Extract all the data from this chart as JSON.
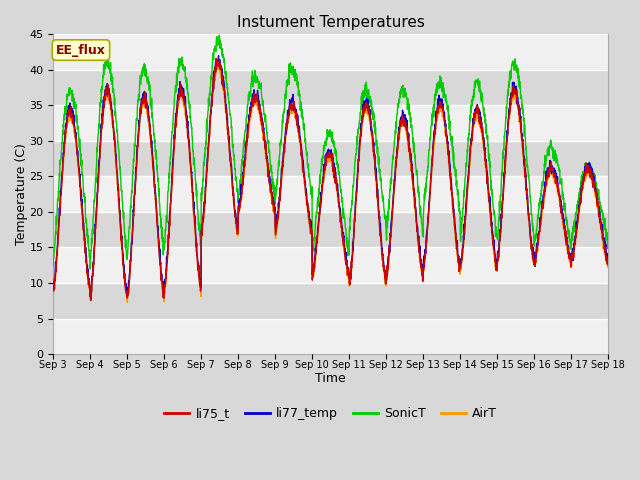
{
  "title": "Instument Temperatures",
  "xlabel": "Time",
  "ylabel": "Temperature (C)",
  "ylim": [
    0,
    45
  ],
  "yticks": [
    0,
    5,
    10,
    15,
    20,
    25,
    30,
    35,
    40,
    45
  ],
  "annotation_text": "EE_flux",
  "series_labels": [
    "li75_t",
    "li77_temp",
    "SonicT",
    "AirT"
  ],
  "series_colors": [
    "#cc0000",
    "#0000cc",
    "#00cc00",
    "#ff9900"
  ],
  "x_tick_labels": [
    "Sep 3",
    "Sep 4",
    "Sep 5",
    "Sep 6",
    "Sep 7",
    "Sep 8",
    "Sep 9",
    "Sep 10",
    "Sep 11",
    "Sep 12",
    "Sep 13",
    "Sep 14",
    "Sep 15",
    "Sep 16",
    "Sep 17",
    "Sep 18"
  ],
  "bg_color": "#d8d8d8",
  "plot_bg_color": "#f0f0f0",
  "grid_color": "#e0e0e0",
  "band_color": "#e8e8e8",
  "fig_width": 6.4,
  "fig_height": 4.8,
  "dpi": 100,
  "day_maxes_li75": [
    34,
    37,
    36,
    37,
    41,
    36,
    35,
    28,
    35,
    33,
    35,
    34,
    37,
    26,
    26
  ],
  "day_mins_li75": [
    9,
    8,
    8,
    9,
    17,
    20,
    17,
    11,
    10,
    11,
    12,
    12,
    13,
    13,
    13
  ],
  "sonic_offset": [
    3,
    4,
    4,
    4,
    3,
    3,
    5,
    3,
    2,
    4,
    3,
    4,
    4,
    3,
    0
  ],
  "sonic_min_offset": [
    4,
    5,
    6,
    6,
    5,
    2,
    5,
    3,
    8,
    6,
    8,
    4,
    3,
    2,
    3
  ]
}
